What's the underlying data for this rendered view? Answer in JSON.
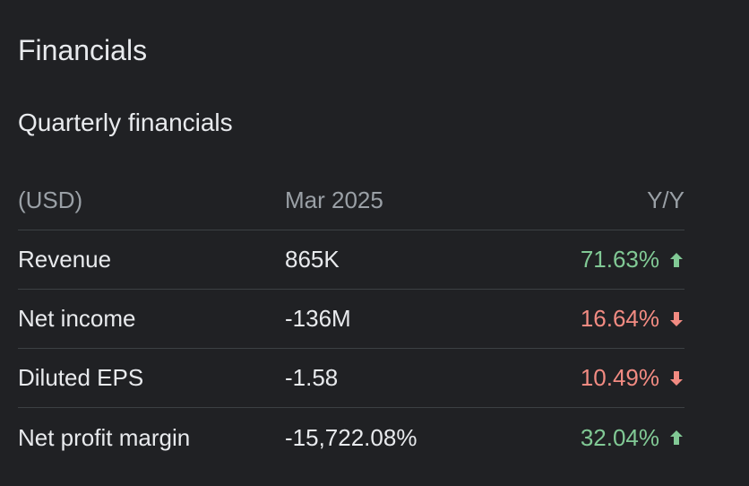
{
  "title": "Financials",
  "subtitle": "Quarterly financials",
  "table": {
    "headers": [
      "(USD)",
      "Mar 2025",
      "Y/Y"
    ],
    "rows": [
      {
        "label": "Revenue",
        "value": "865K",
        "change": "71.63%",
        "direction": "up"
      },
      {
        "label": "Net income",
        "value": "-136M",
        "change": "16.64%",
        "direction": "down"
      },
      {
        "label": "Diluted EPS",
        "value": "-1.58",
        "change": "10.49%",
        "direction": "down"
      },
      {
        "label": "Net profit margin",
        "value": "-15,722.08%",
        "change": "32.04%",
        "direction": "up"
      }
    ]
  },
  "colors": {
    "background": "#202124",
    "text": "#e8eaed",
    "muted": "#9aa0a6",
    "positive": "#81c995",
    "negative": "#f28b82",
    "divider": "#3c4043"
  }
}
